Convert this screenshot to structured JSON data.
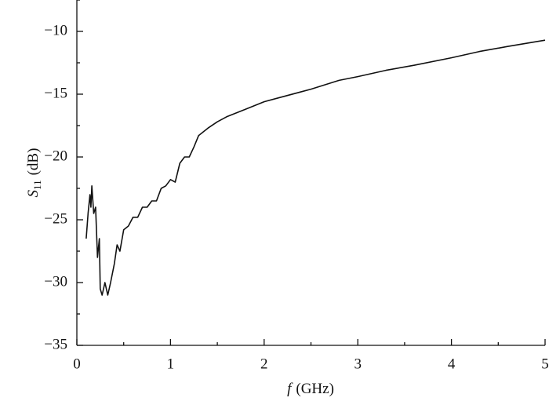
{
  "chart_data": {
    "type": "line",
    "xlabel": {
      "symbol": "f",
      "unit": "(GHz)"
    },
    "ylabel": {
      "symbol": "S",
      "subscript": "11",
      "unit": "(dB)"
    },
    "xlim": [
      0,
      5
    ],
    "xticks": [
      0,
      1,
      2,
      3,
      4,
      5
    ],
    "ylim": [
      -35,
      -7.5
    ],
    "yticks": [
      {
        "value": -35,
        "label": "−35"
      },
      {
        "value": -30,
        "label": "−30"
      },
      {
        "value": -25,
        "label": "−25"
      },
      {
        "value": -20,
        "label": "−20"
      },
      {
        "value": -15,
        "label": "−15"
      },
      {
        "value": -10,
        "label": "−10"
      }
    ],
    "color": "#111111",
    "x": [
      0.1,
      0.12,
      0.14,
      0.15,
      0.16,
      0.18,
      0.2,
      0.22,
      0.24,
      0.25,
      0.27,
      0.3,
      0.33,
      0.36,
      0.4,
      0.43,
      0.46,
      0.5,
      0.55,
      0.6,
      0.65,
      0.7,
      0.75,
      0.8,
      0.85,
      0.9,
      0.95,
      1.0,
      1.05,
      1.1,
      1.15,
      1.2,
      1.25,
      1.3,
      1.4,
      1.5,
      1.6,
      1.8,
      2.0,
      2.2,
      2.5,
      2.8,
      3.0,
      3.3,
      3.6,
      4.0,
      4.3,
      4.6,
      5.0
    ],
    "values": [
      -26.5,
      -24.5,
      -23,
      -24,
      -22.3,
      -24.5,
      -24,
      -28,
      -26.5,
      -30.5,
      -31,
      -30,
      -31,
      -30,
      -28.5,
      -27,
      -27.5,
      -25.8,
      -25.5,
      -24.8,
      -24.8,
      -24,
      -24,
      -23.5,
      -23.5,
      -22.5,
      -22.3,
      -21.8,
      -22,
      -20.5,
      -20,
      -20,
      -19.2,
      -18.3,
      -17.7,
      -17.2,
      -16.8,
      -16.2,
      -15.6,
      -15.2,
      -14.6,
      -13.9,
      -13.6,
      -13.1,
      -12.7,
      -12.1,
      -11.6,
      -11.2,
      -10.7
    ]
  }
}
